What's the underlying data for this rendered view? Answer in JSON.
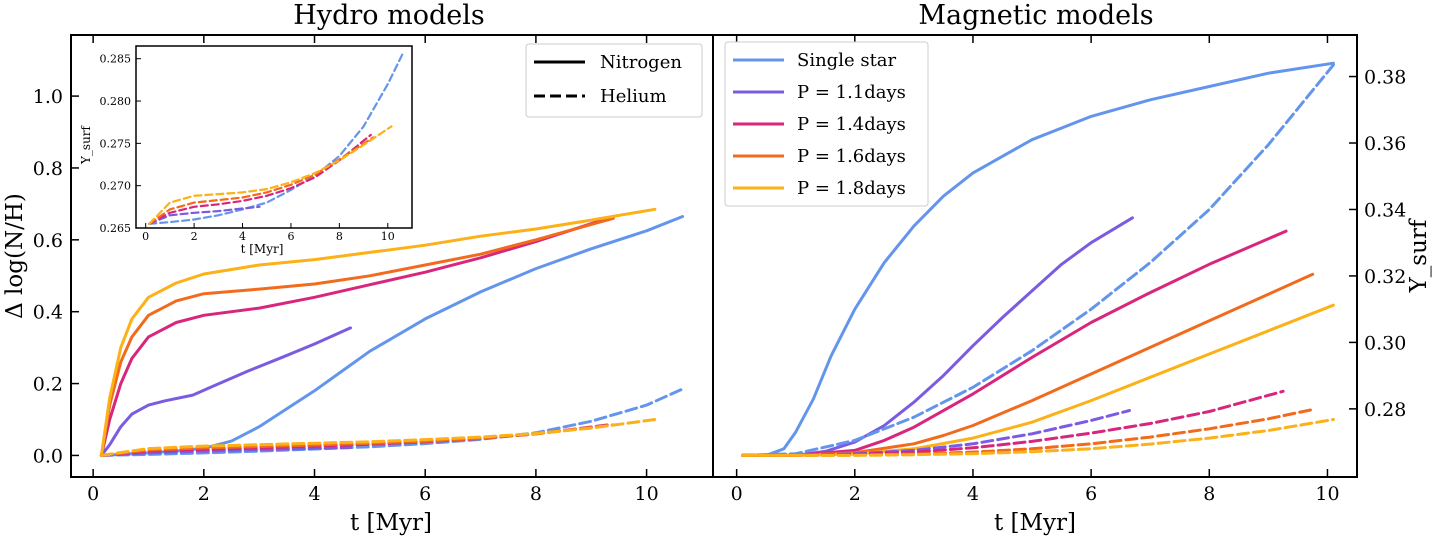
{
  "chart_data": [
    {
      "type": "line",
      "title": "Hydro models",
      "xlabel": "t [Myr]",
      "ylabel": "Δ log(N/H)",
      "xlim": [
        -0.4,
        11.2
      ],
      "ylim": [
        -0.06,
        1.17
      ],
      "xticks": [
        "0",
        "2",
        "4",
        "6",
        "8",
        "10"
      ],
      "yticks": [
        "0.0",
        "0.2",
        "0.4",
        "0.6",
        "0.8",
        "1.0"
      ],
      "legend": {
        "placement": "top-right",
        "items": [
          {
            "label": "Nitrogen",
            "style": "solid"
          },
          {
            "label": "Helium",
            "style": "dashed"
          }
        ]
      },
      "series": [
        {
          "name": "Single star Nitrogen",
          "color": "#6495ed",
          "style": "solid",
          "x": [
            0.15,
            0.5,
            1,
            1.5,
            2,
            2.5,
            3,
            3.5,
            4,
            4.5,
            5,
            6,
            7,
            8,
            9,
            10,
            10.65
          ],
          "y": [
            0.0,
            0.003,
            0.007,
            0.012,
            0.02,
            0.04,
            0.08,
            0.13,
            0.18,
            0.235,
            0.29,
            0.38,
            0.455,
            0.52,
            0.575,
            0.625,
            0.665
          ]
        },
        {
          "name": "P = 1.1days Nitrogen",
          "color": "#7b5ce0",
          "style": "solid",
          "x": [
            0.15,
            0.3,
            0.5,
            0.7,
            1.0,
            1.3,
            1.8,
            2.2,
            2.8,
            3.4,
            4.0,
            4.65
          ],
          "y": [
            0.0,
            0.03,
            0.08,
            0.115,
            0.14,
            0.152,
            0.168,
            0.195,
            0.235,
            0.272,
            0.31,
            0.355
          ]
        },
        {
          "name": "P = 1.4days Nitrogen",
          "color": "#d9267d",
          "style": "solid",
          "x": [
            0.15,
            0.3,
            0.5,
            0.7,
            1.0,
            1.5,
            2.0,
            3.0,
            4.0,
            5.0,
            6.0,
            7.0,
            8.0,
            9.3
          ],
          "y": [
            0.0,
            0.1,
            0.2,
            0.27,
            0.33,
            0.37,
            0.39,
            0.41,
            0.44,
            0.475,
            0.51,
            0.55,
            0.595,
            0.66
          ]
        },
        {
          "name": "P = 1.6days Nitrogen",
          "color": "#f26b1d",
          "style": "solid",
          "x": [
            0.15,
            0.3,
            0.5,
            0.7,
            1.0,
            1.5,
            2.0,
            3.0,
            4.0,
            5.0,
            6.0,
            7.0,
            8.0,
            9.4
          ],
          "y": [
            0.0,
            0.14,
            0.26,
            0.33,
            0.39,
            0.43,
            0.45,
            0.463,
            0.477,
            0.5,
            0.53,
            0.56,
            0.6,
            0.66
          ]
        },
        {
          "name": "P = 1.8days Nitrogen",
          "color": "#fbb117",
          "style": "solid",
          "x": [
            0.15,
            0.3,
            0.5,
            0.7,
            1.0,
            1.5,
            2.0,
            3.0,
            4.0,
            5.0,
            6.0,
            7.0,
            8.0,
            9.0,
            10.15
          ],
          "y": [
            0.0,
            0.16,
            0.3,
            0.38,
            0.44,
            0.48,
            0.505,
            0.53,
            0.545,
            0.565,
            0.585,
            0.61,
            0.63,
            0.655,
            0.685
          ]
        },
        {
          "name": "Single star Helium",
          "color": "#6495ed",
          "style": "dashed",
          "x": [
            0.15,
            1,
            2,
            3,
            4,
            5,
            6,
            7,
            8,
            9,
            10,
            10.65
          ],
          "y": [
            0.0,
            0.003,
            0.007,
            0.012,
            0.018,
            0.024,
            0.033,
            0.045,
            0.063,
            0.095,
            0.14,
            0.185
          ]
        },
        {
          "name": "P = 1.1days Helium",
          "color": "#7b5ce0",
          "style": "dashed",
          "x": [
            0.15,
            1,
            2,
            3,
            4,
            4.65
          ],
          "y": [
            0.0,
            0.007,
            0.012,
            0.016,
            0.02,
            0.022
          ]
        },
        {
          "name": "P = 1.4days Helium",
          "color": "#d9267d",
          "style": "dashed",
          "x": [
            0.15,
            1,
            2,
            3,
            4,
            5,
            6,
            7,
            8,
            9.3
          ],
          "y": [
            0.0,
            0.012,
            0.017,
            0.021,
            0.026,
            0.031,
            0.038,
            0.047,
            0.06,
            0.085
          ]
        },
        {
          "name": "P = 1.6days Helium",
          "color": "#f26b1d",
          "style": "dashed",
          "x": [
            0.15,
            1,
            2,
            3,
            4,
            5,
            6,
            7,
            8,
            9.4
          ],
          "y": [
            0.0,
            0.015,
            0.021,
            0.025,
            0.029,
            0.034,
            0.04,
            0.048,
            0.06,
            0.085
          ]
        },
        {
          "name": "P = 1.8days Helium",
          "color": "#fbb117",
          "style": "dashed",
          "x": [
            0.15,
            1,
            2,
            3,
            4,
            5,
            6,
            7,
            8,
            9,
            10.15
          ],
          "y": [
            0.0,
            0.019,
            0.026,
            0.03,
            0.034,
            0.038,
            0.044,
            0.051,
            0.061,
            0.076,
            0.1
          ]
        }
      ],
      "inset": {
        "ylabel": "Y_surf",
        "xlabel": "t [Myr]",
        "xlim": [
          -0.4,
          11.0
        ],
        "ylim": [
          0.265,
          0.2865
        ],
        "xticks": [
          "0",
          "2",
          "4",
          "6",
          "8",
          "10"
        ],
        "yticks": [
          "0.265",
          "0.270",
          "0.275",
          "0.280",
          "0.285"
        ],
        "series": [
          {
            "name": "Single star",
            "color": "#6495ed",
            "style": "dashed",
            "x": [
              0.15,
              1,
              2,
              3,
              4,
              5,
              6,
              7,
              8,
              9,
              10,
              10.6
            ],
            "y": [
              0.2655,
              0.2657,
              0.266,
              0.2665,
              0.2672,
              0.268,
              0.2695,
              0.2712,
              0.2735,
              0.277,
              0.282,
              0.2855
            ]
          },
          {
            "name": "P = 1.1days",
            "color": "#7b5ce0",
            "style": "dashed",
            "x": [
              0.15,
              1,
              2,
              3,
              4,
              4.7
            ],
            "y": [
              0.2655,
              0.2665,
              0.2668,
              0.267,
              0.2673,
              0.2675
            ]
          },
          {
            "name": "P = 1.4days",
            "color": "#d9267d",
            "style": "dashed",
            "x": [
              0.15,
              1,
              2,
              3,
              4,
              5,
              6,
              7,
              8,
              9.3
            ],
            "y": [
              0.2655,
              0.2668,
              0.2675,
              0.2678,
              0.2682,
              0.2688,
              0.2697,
              0.271,
              0.273,
              0.276
            ]
          },
          {
            "name": "P = 1.6days",
            "color": "#f26b1d",
            "style": "dashed",
            "x": [
              0.15,
              1,
              2,
              3,
              4,
              5,
              6,
              7,
              8,
              9.4
            ],
            "y": [
              0.2655,
              0.2672,
              0.268,
              0.2683,
              0.2686,
              0.2692,
              0.2701,
              0.2713,
              0.2731,
              0.2757
            ]
          },
          {
            "name": "P = 1.8days",
            "color": "#fbb117",
            "style": "dashed",
            "x": [
              0.15,
              1,
              2,
              3,
              4,
              5,
              6,
              7,
              8,
              9,
              10.15
            ],
            "y": [
              0.2655,
              0.268,
              0.2688,
              0.269,
              0.2692,
              0.2696,
              0.2704,
              0.2715,
              0.273,
              0.2748,
              0.277
            ]
          }
        ]
      }
    },
    {
      "type": "line",
      "title": "Magnetic models",
      "xlabel": "t [Myr]",
      "ylabel_right": "Y_surf",
      "xlim": [
        -0.4,
        10.5
      ],
      "ylim": [
        0.2595,
        0.3925
      ],
      "xticks": [
        "0",
        "2",
        "4",
        "6",
        "8",
        "10"
      ],
      "yticks": [
        "0.28",
        "0.30",
        "0.32",
        "0.34",
        "0.36",
        "0.38"
      ],
      "legend": {
        "placement": "top-left",
        "items": [
          {
            "label": "Single star",
            "color": "#6495ed"
          },
          {
            "label": "P = 1.1days",
            "color": "#7b5ce0"
          },
          {
            "label": "P = 1.4days",
            "color": "#d9267d"
          },
          {
            "label": "P = 1.6days",
            "color": "#f26b1d"
          },
          {
            "label": "P = 1.8days",
            "color": "#fbb117"
          }
        ]
      },
      "series": [
        {
          "name": "Single star",
          "color": "#6495ed",
          "style": "solid",
          "x": [
            0.1,
            0.5,
            0.8,
            1.0,
            1.3,
            1.6,
            2.0,
            2.5,
            3.0,
            3.5,
            4.0,
            5.0,
            6.0,
            7.0,
            8.0,
            9.0,
            10.1
          ],
          "y": [
            0.266,
            0.266,
            0.268,
            0.273,
            0.283,
            0.296,
            0.31,
            0.324,
            0.335,
            0.344,
            0.351,
            0.361,
            0.368,
            0.373,
            0.377,
            0.381,
            0.384
          ]
        },
        {
          "name": "P = 1.1days",
          "color": "#7b5ce0",
          "style": "solid",
          "x": [
            0.1,
            1.0,
            1.5,
            2.0,
            2.5,
            3.0,
            3.5,
            4.0,
            4.5,
            5.0,
            5.5,
            6.0,
            6.7
          ],
          "y": [
            0.266,
            0.266,
            0.2672,
            0.27,
            0.275,
            0.282,
            0.29,
            0.299,
            0.3075,
            0.3155,
            0.3235,
            0.33,
            0.3375
          ]
        },
        {
          "name": "P = 1.4days",
          "color": "#d9267d",
          "style": "solid",
          "x": [
            0.1,
            1.0,
            2.0,
            2.5,
            3.0,
            4.0,
            5.0,
            6.0,
            7.0,
            8.0,
            9.3
          ],
          "y": [
            0.266,
            0.266,
            0.2675,
            0.2705,
            0.2745,
            0.2845,
            0.2955,
            0.306,
            0.315,
            0.3235,
            0.3335
          ]
        },
        {
          "name": "P = 1.6days",
          "color": "#f26b1d",
          "style": "solid",
          "x": [
            0.1,
            1.0,
            2.0,
            3.0,
            3.5,
            4.0,
            5.0,
            6.0,
            7.0,
            8.0,
            9.0,
            9.75
          ],
          "y": [
            0.266,
            0.266,
            0.2668,
            0.2695,
            0.272,
            0.275,
            0.2825,
            0.2905,
            0.2985,
            0.3065,
            0.3145,
            0.3205
          ]
        },
        {
          "name": "P = 1.8days",
          "color": "#fbb117",
          "style": "solid",
          "x": [
            0.1,
            1.0,
            2.0,
            3.0,
            4.0,
            5.0,
            6.0,
            7.0,
            8.0,
            9.0,
            10.1
          ],
          "y": [
            0.266,
            0.266,
            0.2664,
            0.268,
            0.2712,
            0.276,
            0.2825,
            0.2895,
            0.2965,
            0.3035,
            0.3112
          ]
        },
        {
          "name": "Single star (dashed)",
          "color": "#6495ed",
          "style": "dashed",
          "x": [
            0.1,
            1.0,
            2.0,
            3.0,
            4.0,
            5.0,
            6.0,
            7.0,
            8.0,
            9.0,
            10.1
          ],
          "y": [
            0.266,
            0.2665,
            0.2705,
            0.2775,
            0.2865,
            0.2975,
            0.31,
            0.324,
            0.34,
            0.3595,
            0.3835
          ]
        },
        {
          "name": "P = 1.1days (dashed)",
          "color": "#7b5ce0",
          "style": "dashed",
          "x": [
            0.1,
            1.0,
            2.0,
            3.0,
            4.0,
            5.0,
            6.0,
            6.65
          ],
          "y": [
            0.266,
            0.266,
            0.2665,
            0.2675,
            0.2695,
            0.2725,
            0.2765,
            0.2795
          ]
        },
        {
          "name": "P = 1.4days (dashed)",
          "color": "#d9267d",
          "style": "dashed",
          "x": [
            0.1,
            1.0,
            2.0,
            3.0,
            4.0,
            5.0,
            6.0,
            7.0,
            8.0,
            9.25
          ],
          "y": [
            0.266,
            0.266,
            0.2663,
            0.267,
            0.2683,
            0.2702,
            0.2727,
            0.2756,
            0.2792,
            0.2853
          ]
        },
        {
          "name": "P = 1.6days (dashed)",
          "color": "#f26b1d",
          "style": "dashed",
          "x": [
            0.1,
            1.0,
            2.0,
            3.0,
            4.0,
            5.0,
            6.0,
            7.0,
            8.0,
            9.0,
            9.75
          ],
          "y": [
            0.266,
            0.266,
            0.2661,
            0.2664,
            0.267,
            0.268,
            0.2695,
            0.2715,
            0.274,
            0.277,
            0.2798
          ]
        },
        {
          "name": "P = 1.8days (dashed)",
          "color": "#fbb117",
          "style": "dashed",
          "x": [
            0.1,
            1.0,
            2.0,
            3.0,
            4.0,
            5.0,
            6.0,
            7.0,
            8.0,
            9.0,
            10.1
          ],
          "y": [
            0.266,
            0.266,
            0.266,
            0.2662,
            0.2665,
            0.2671,
            0.268,
            0.2694,
            0.2712,
            0.2735,
            0.2768
          ]
        }
      ]
    }
  ]
}
